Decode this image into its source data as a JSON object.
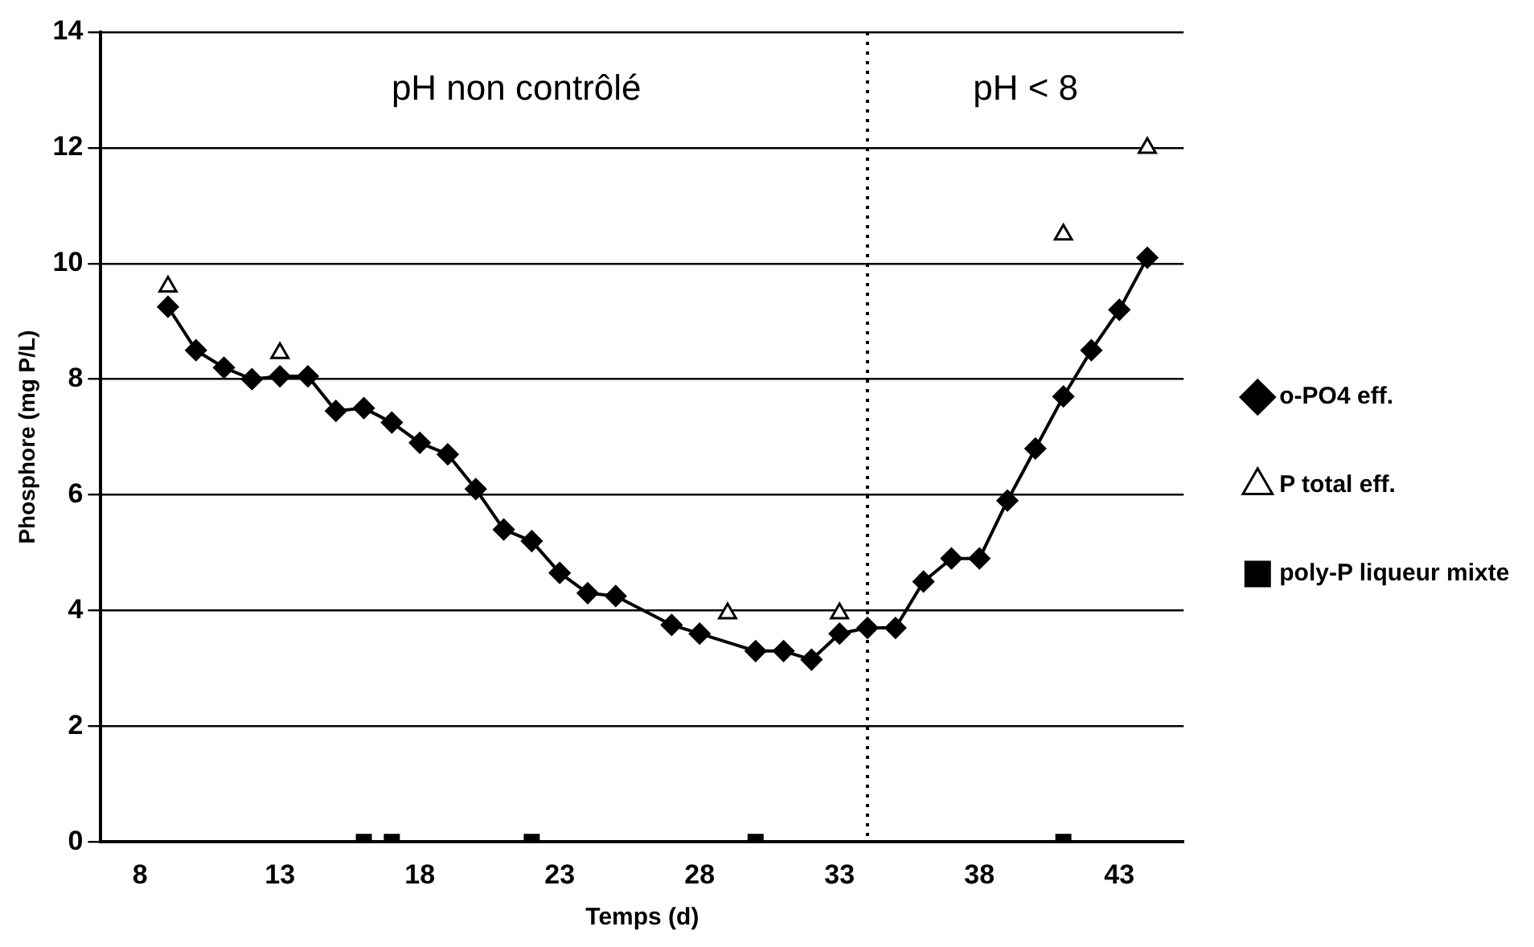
{
  "chart_data": {
    "type": "line",
    "xlabel": "Temps (d)",
    "ylabel": "Phosphore (mg P/L)",
    "xlim": [
      6.6,
      45.3
    ],
    "xticks": [
      8,
      13,
      18,
      23,
      28,
      33,
      38,
      43
    ],
    "ylim": [
      0,
      14
    ],
    "yticks": [
      0,
      2,
      4,
      6,
      8,
      10,
      12,
      14
    ],
    "grid": "y",
    "legend": "right",
    "series": [
      {
        "name": "o-PO4 eff.",
        "type": "line",
        "marker": "diamond",
        "color": "#000000",
        "x": [
          9,
          10,
          11,
          12,
          13,
          14,
          15,
          16,
          17,
          18,
          19,
          20,
          21,
          22,
          23,
          24,
          25,
          27,
          28,
          30,
          31,
          32,
          33,
          34,
          35,
          36,
          37,
          38,
          39,
          40,
          41,
          42,
          43,
          44
        ],
        "values": [
          9.25,
          8.5,
          8.2,
          8.0,
          8.05,
          8.05,
          7.45,
          7.5,
          7.25,
          6.9,
          6.7,
          6.1,
          5.4,
          5.2,
          4.65,
          4.3,
          4.25,
          3.75,
          3.6,
          3.3,
          3.3,
          3.15,
          3.6,
          3.7,
          3.7,
          4.5,
          4.9,
          4.9,
          5.9,
          6.8,
          7.7,
          8.5,
          9.2,
          10.1
        ]
      },
      {
        "name": "P total eff.",
        "type": "scatter",
        "marker": "triangle",
        "color": "#000000",
        "x": [
          9,
          13,
          29,
          33,
          41,
          44
        ],
        "values": [
          9.6,
          8.45,
          3.95,
          3.95,
          10.5,
          12.0
        ]
      },
      {
        "name": "poly-P liqueur mixte",
        "type": "scatter",
        "marker": "square",
        "color": "#000000",
        "x": [
          16,
          17,
          22,
          30,
          41
        ],
        "values": [
          0,
          0,
          0,
          0,
          0
        ]
      }
    ],
    "ref_lines": [
      {
        "axis": "x",
        "value": 34,
        "line_style": "dotted",
        "color": "#000000"
      }
    ],
    "annotations": [
      "pH non contrôlé",
      "pH < 8"
    ]
  }
}
